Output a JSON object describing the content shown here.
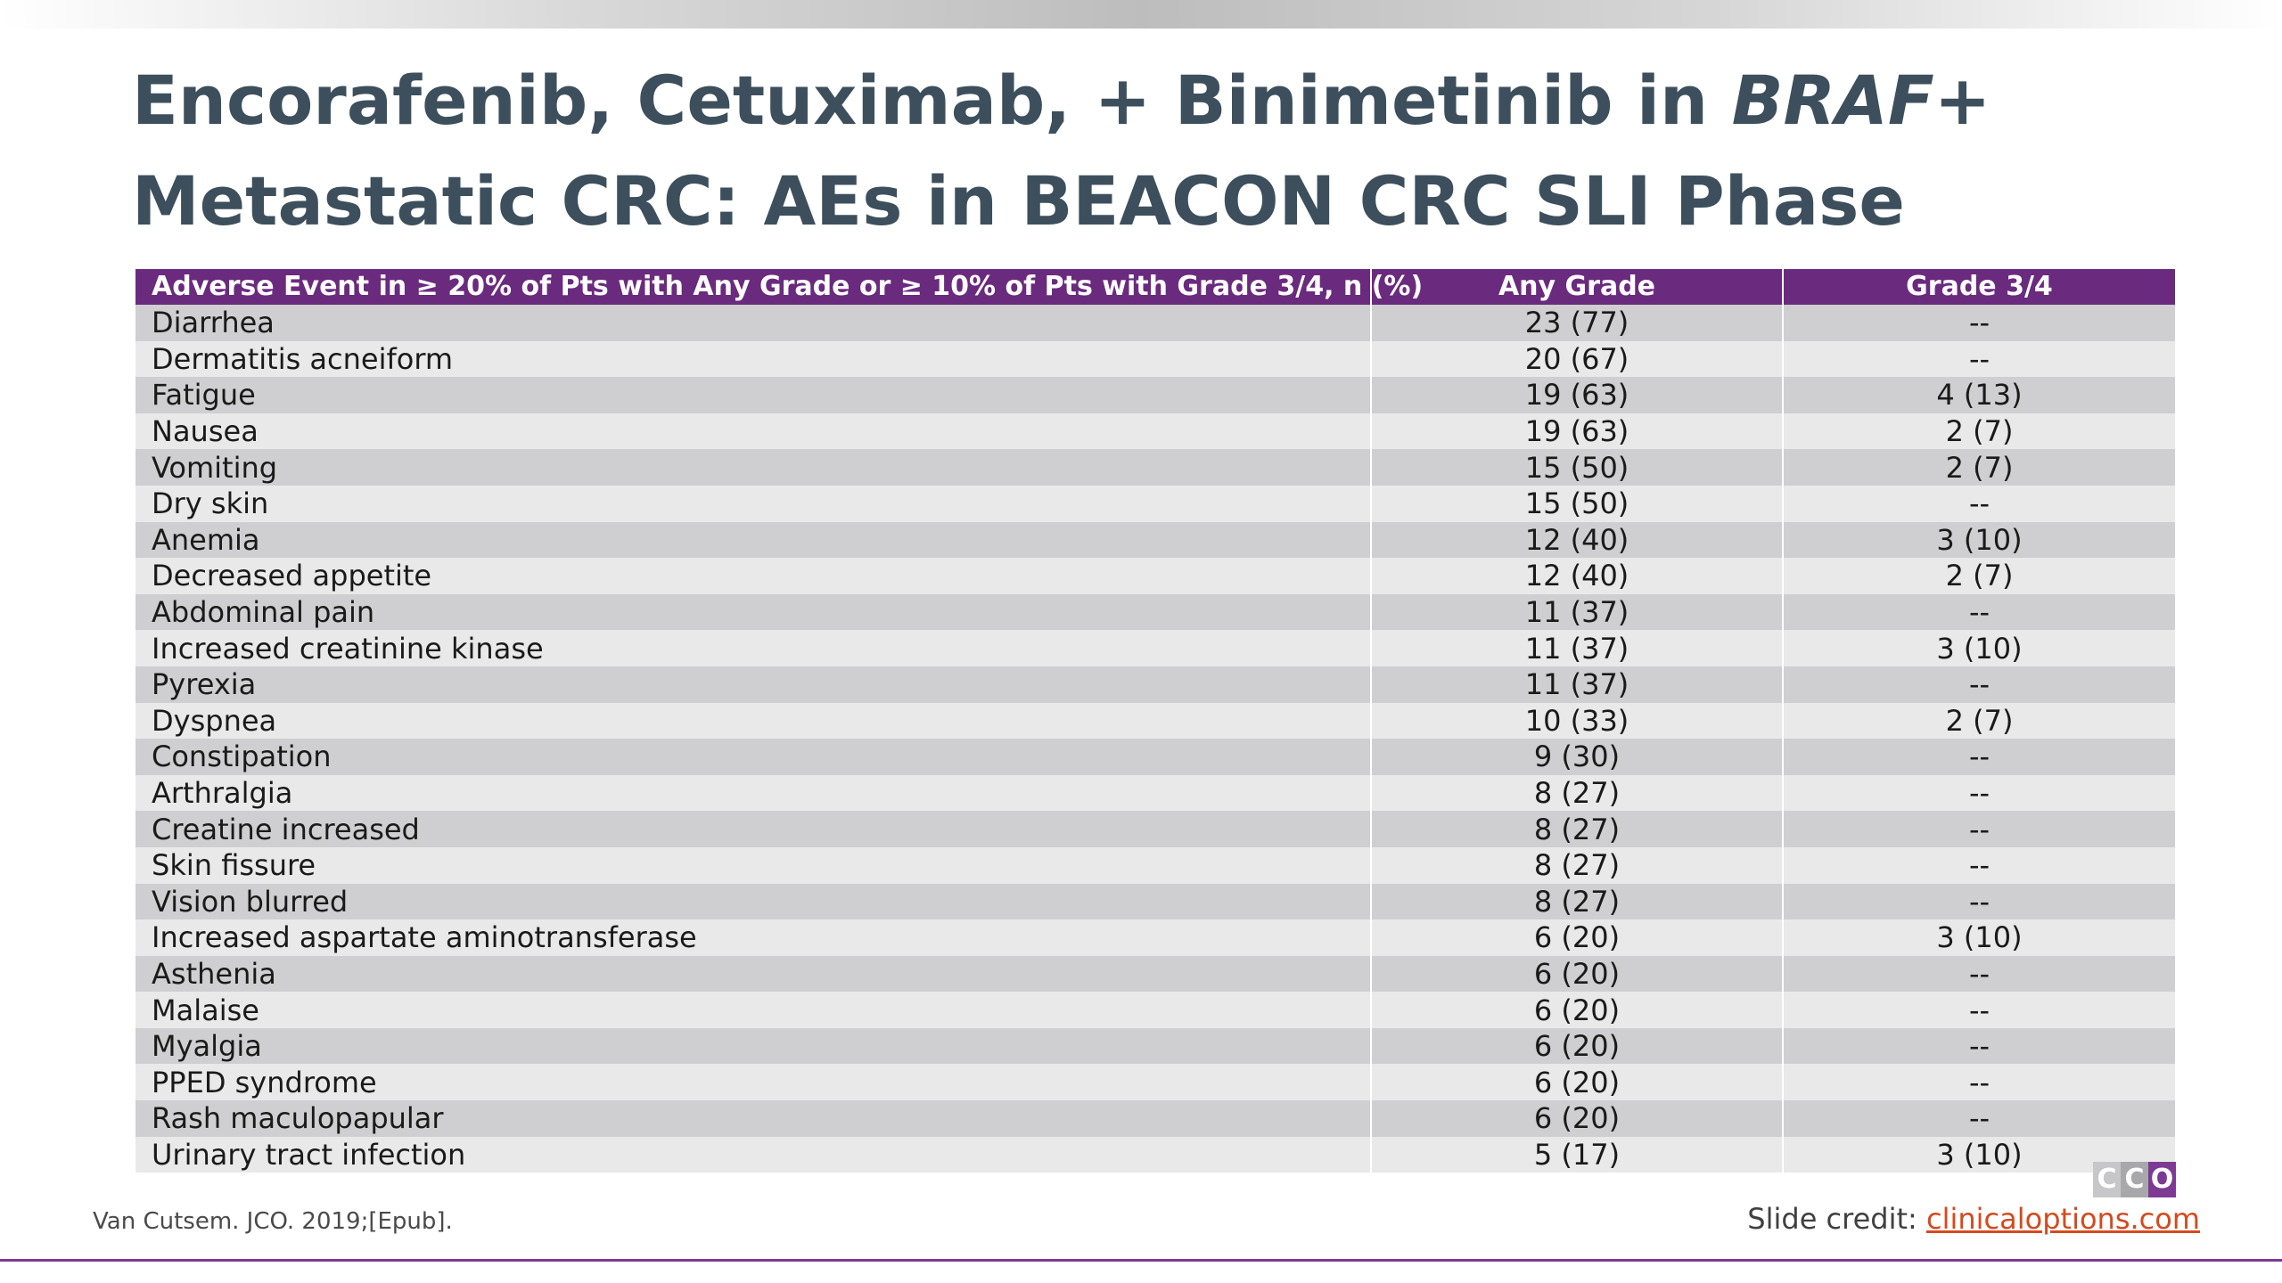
{
  "slide": {
    "title_line1_prefix": "Encorafenib, Cetuximab, + Binimetinib in ",
    "title_line1_italic": "BRAF",
    "title_line1_suffix": "+",
    "title_line2": "Metastatic CRC: AEs in BEACON CRC SLI Phase"
  },
  "table": {
    "headers": [
      "Adverse Event in ≥ 20% of Pts with Any Grade or ≥ 10% of Pts with Grade 3/4, n (%)",
      "Any Grade",
      "Grade 3/4"
    ],
    "rows": [
      {
        "event": "Diarrhea",
        "any_grade": "23 (77)",
        "grade34": "--"
      },
      {
        "event": "Dermatitis acneiform",
        "any_grade": "20 (67)",
        "grade34": "--"
      },
      {
        "event": "Fatigue",
        "any_grade": "19 (63)",
        "grade34": "4 (13)"
      },
      {
        "event": "Nausea",
        "any_grade": "19 (63)",
        "grade34": "2 (7)"
      },
      {
        "event": "Vomiting",
        "any_grade": "15 (50)",
        "grade34": "2 (7)"
      },
      {
        "event": "Dry skin",
        "any_grade": "15 (50)",
        "grade34": "--"
      },
      {
        "event": "Anemia",
        "any_grade": "12 (40)",
        "grade34": "3 (10)"
      },
      {
        "event": "Decreased appetite",
        "any_grade": "12 (40)",
        "grade34": "2 (7)"
      },
      {
        "event": "Abdominal pain",
        "any_grade": "11 (37)",
        "grade34": "--"
      },
      {
        "event": "Increased creatinine kinase",
        "any_grade": "11 (37)",
        "grade34": "3 (10)"
      },
      {
        "event": "Pyrexia",
        "any_grade": "11 (37)",
        "grade34": "--"
      },
      {
        "event": "Dyspnea",
        "any_grade": "10 (33)",
        "grade34": "2 (7)"
      },
      {
        "event": "Constipation",
        "any_grade": "9 (30)",
        "grade34": "--"
      },
      {
        "event": "Arthralgia",
        "any_grade": "8 (27)",
        "grade34": "--"
      },
      {
        "event": "Creatine increased",
        "any_grade": "8 (27)",
        "grade34": "--"
      },
      {
        "event": "Skin fissure",
        "any_grade": "8 (27)",
        "grade34": "--"
      },
      {
        "event": "Vision blurred",
        "any_grade": "8 (27)",
        "grade34": "--"
      },
      {
        "event": "Increased aspartate aminotransferase",
        "any_grade": "6 (20)",
        "grade34": "3 (10)"
      },
      {
        "event": "Asthenia",
        "any_grade": "6 (20)",
        "grade34": "--"
      },
      {
        "event": "Malaise",
        "any_grade": "6 (20)",
        "grade34": "--"
      },
      {
        "event": "Myalgia",
        "any_grade": "6 (20)",
        "grade34": "--"
      },
      {
        "event": "PPED syndrome",
        "any_grade": "6 (20)",
        "grade34": "--"
      },
      {
        "event": "Rash maculopapular",
        "any_grade": "6 (20)",
        "grade34": "--"
      },
      {
        "event": "Urinary tract infection",
        "any_grade": "5 (17)",
        "grade34": "3 (10)"
      }
    ]
  },
  "logo": {
    "letters": [
      "C",
      "C",
      "O"
    ]
  },
  "footer": {
    "citation": "Van Cutsem. JCO. 2019;[Epub].",
    "credit_label": "Slide credit: ",
    "credit_link": "clinicaloptions.com"
  },
  "colors": {
    "title": "#3d4f5c",
    "header_bg": "#6a2a7e",
    "row_dark": "#cfcfd1",
    "row_light": "#e9e9ea",
    "link": "#d44a1e",
    "accent_purple": "#7d3a93"
  }
}
